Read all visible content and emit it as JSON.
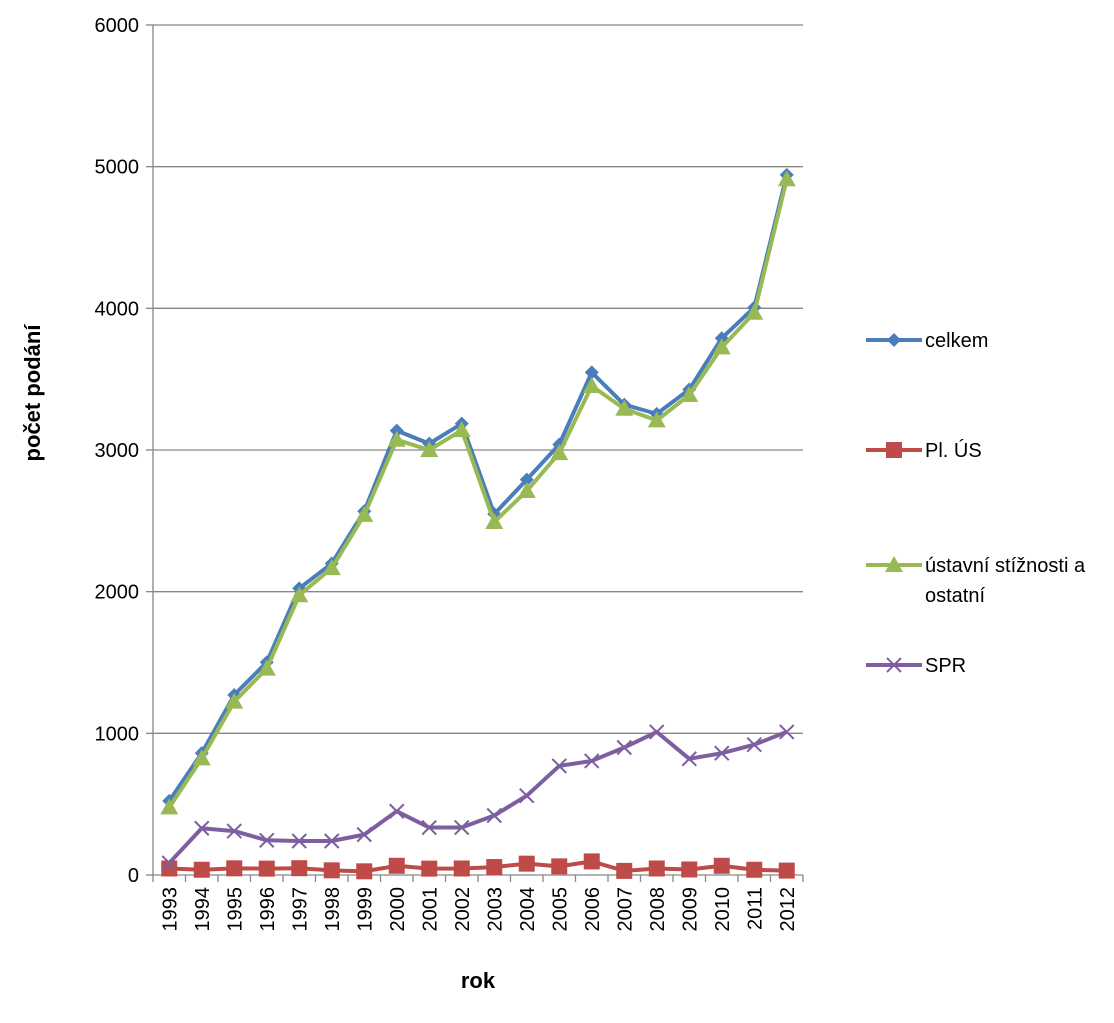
{
  "chart_data": {
    "type": "line",
    "xlabel": "rok",
    "ylabel": "počet podání",
    "ylim": [
      0,
      6000
    ],
    "yticks": [
      0,
      1000,
      2000,
      3000,
      4000,
      5000,
      6000
    ],
    "grid": "horizontal",
    "legend_position": "right",
    "categories": [
      "1993",
      "1994",
      "1995",
      "1996",
      "1997",
      "1998",
      "1999",
      "2000",
      "2001",
      "2002",
      "2003",
      "2004",
      "2005",
      "2006",
      "2007",
      "2008",
      "2009",
      "2010",
      "2011",
      "2012"
    ],
    "series": [
      {
        "name": "celkem",
        "color": "#4a7ebb",
        "marker": "diamond",
        "values": [
          523,
          860,
          1271,
          1502,
          2023,
          2199,
          2568,
          3137,
          3045,
          3186,
          2548,
          2791,
          3039,
          3548,
          3320,
          3255,
          3427,
          3789,
          4006,
          4942
        ]
      },
      {
        "name": "Pl. ÚS",
        "color": "#be4b48",
        "marker": "square",
        "values": [
          46,
          37,
          47,
          45,
          48,
          33,
          26,
          65,
          45,
          46,
          56,
          80,
          61,
          96,
          29,
          46,
          39,
          65,
          37,
          31
        ]
      },
      {
        "name": "ústavní stížnosti a ostatní",
        "color": "#98b954",
        "marker": "triangle",
        "values": [
          477,
          823,
          1224,
          1457,
          1975,
          2166,
          2542,
          3072,
          3000,
          3140,
          2492,
          2711,
          2978,
          3452,
          3291,
          3209,
          3388,
          3724,
          3969,
          4911
        ]
      },
      {
        "name": "SPR",
        "color": "#7d5fa0",
        "marker": "x",
        "values": [
          85,
          330,
          310,
          245,
          240,
          240,
          285,
          450,
          335,
          335,
          420,
          560,
          770,
          805,
          900,
          1010,
          820,
          860,
          920,
          1010
        ]
      }
    ]
  }
}
